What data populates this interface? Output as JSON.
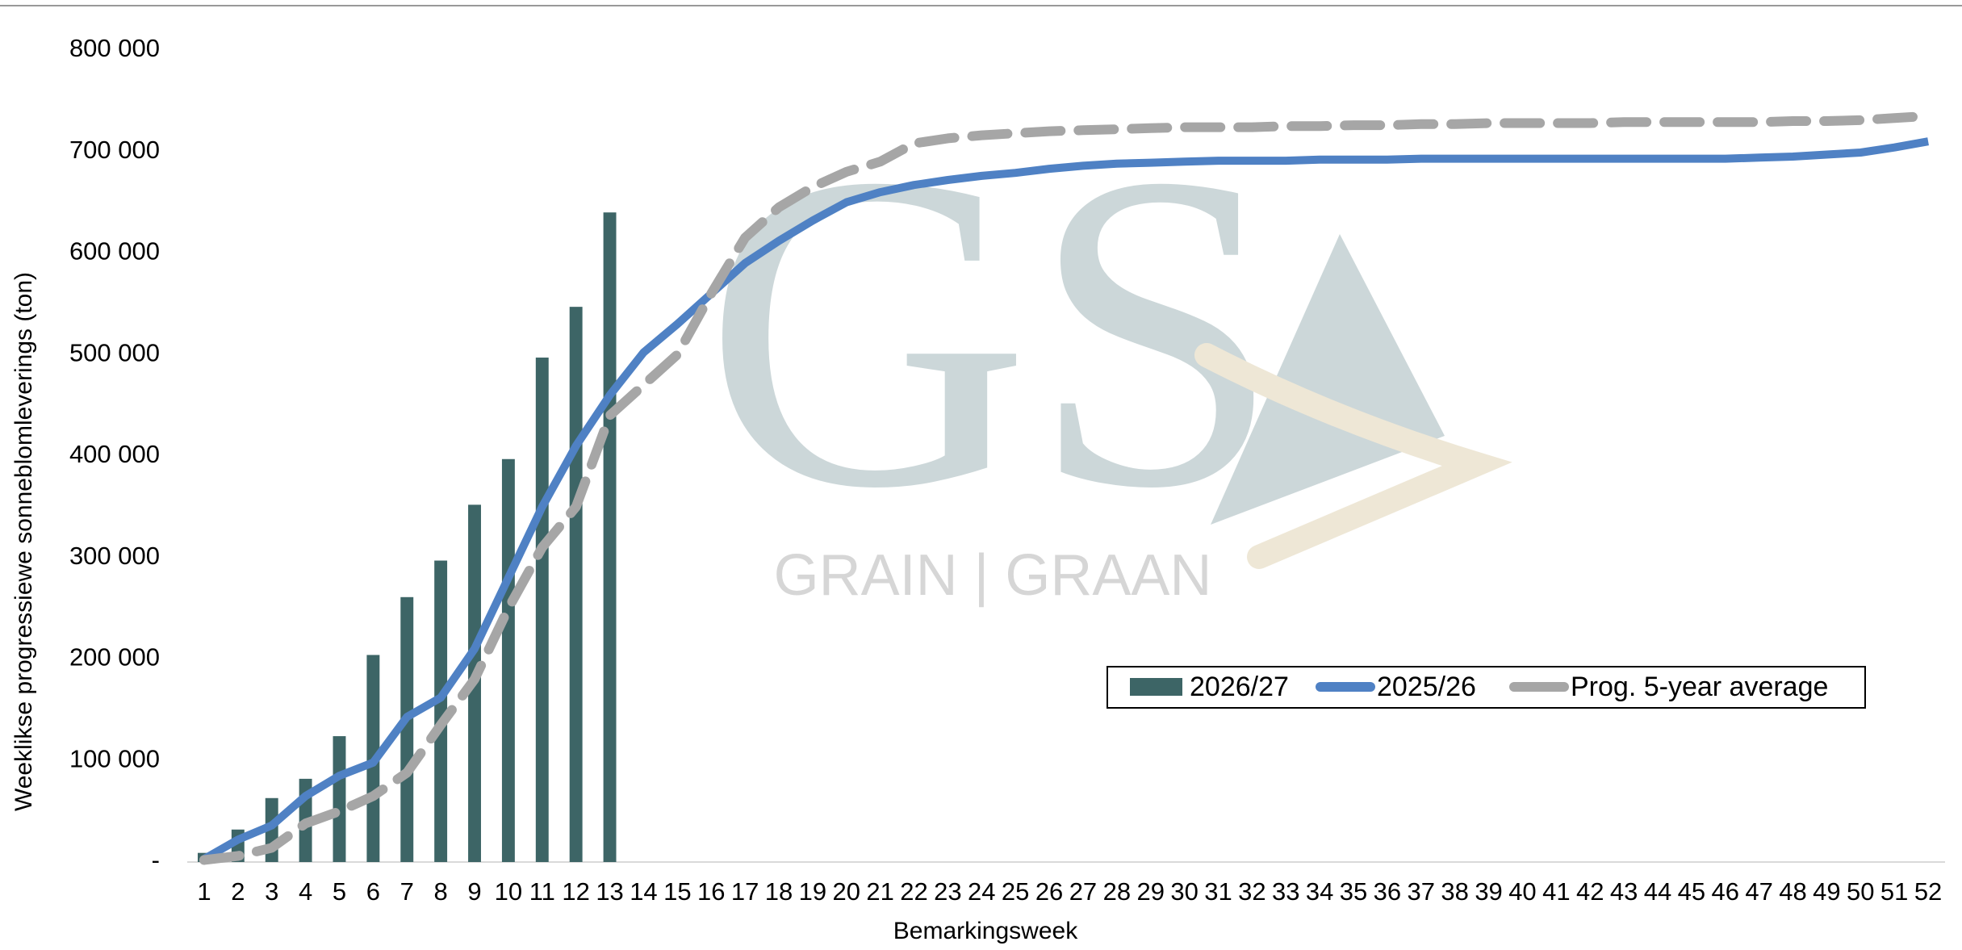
{
  "chart_data": {
    "type": "combo",
    "y_axis_label": "Weeklikse progressiewe sonneblomleverings (ton)",
    "x_axis_label": "Bemarkingsweek",
    "watermark": {
      "logo": "GS",
      "tagline": "GRAIN | GRAAN"
    },
    "categories": [
      "1",
      "2",
      "3",
      "4",
      "5",
      "6",
      "7",
      "8",
      "9",
      "10",
      "11",
      "12",
      "13",
      "14",
      "15",
      "16",
      "17",
      "18",
      "19",
      "20",
      "21",
      "22",
      "23",
      "24",
      "25",
      "26",
      "27",
      "28",
      "29",
      "30",
      "31",
      "32",
      "33",
      "34",
      "35",
      "36",
      "37",
      "38",
      "39",
      "40",
      "41",
      "42",
      "43",
      "44",
      "45",
      "46",
      "47",
      "48",
      "49",
      "50",
      "51",
      "52"
    ],
    "series": [
      {
        "name": "2026/27",
        "type": "bar",
        "color": "#3d6566",
        "values": [
          9000,
          32000,
          63000,
          82000,
          124000,
          204000,
          261000,
          297000,
          352000,
          397000,
          497000,
          547000,
          640000,
          null,
          null,
          null,
          null,
          null,
          null,
          null,
          null,
          null,
          null,
          null,
          null,
          null,
          null,
          null,
          null,
          null,
          null,
          null,
          null,
          null,
          null,
          null,
          null,
          null,
          null,
          null,
          null,
          null,
          null,
          null,
          null,
          null,
          null,
          null,
          null,
          null,
          null,
          null
        ]
      },
      {
        "name": "2025/26",
        "type": "line",
        "color": "#4f81c4",
        "values": [
          3000,
          22000,
          36000,
          65000,
          85000,
          98000,
          143000,
          162000,
          210000,
          280000,
          350000,
          410000,
          460000,
          502000,
          530000,
          560000,
          590000,
          612000,
          632000,
          650000,
          660000,
          667000,
          672000,
          676000,
          679000,
          683000,
          686000,
          688000,
          689000,
          690000,
          691000,
          691000,
          691000,
          692000,
          692000,
          692000,
          693000,
          693000,
          693000,
          693000,
          693000,
          693000,
          693000,
          693000,
          693000,
          693000,
          694000,
          695000,
          697000,
          699000,
          704000,
          710000
        ]
      },
      {
        "name": "Prog. 5-year average",
        "type": "line",
        "dashed": true,
        "color": "#a6a6a6",
        "values": [
          2000,
          6000,
          14000,
          38000,
          50000,
          65000,
          88000,
          135000,
          180000,
          250000,
          310000,
          350000,
          440000,
          470000,
          500000,
          560000,
          615000,
          645000,
          665000,
          680000,
          690000,
          708000,
          713000,
          716000,
          718000,
          720000,
          721000,
          722000,
          723000,
          724000,
          724000,
          724000,
          725000,
          725000,
          726000,
          726000,
          727000,
          727000,
          728000,
          728000,
          728000,
          728000,
          729000,
          729000,
          729000,
          729000,
          729000,
          730000,
          730000,
          731000,
          733000,
          735000
        ]
      }
    ],
    "ylim": [
      0,
      800000
    ],
    "yticks": [
      {
        "value": 0,
        "label": "-"
      },
      {
        "value": 100000,
        "label": "100 000"
      },
      {
        "value": 200000,
        "label": "200 000"
      },
      {
        "value": 300000,
        "label": "300 000"
      },
      {
        "value": 400000,
        "label": "400 000"
      },
      {
        "value": 500000,
        "label": "500 000"
      },
      {
        "value": 600000,
        "label": "600 000"
      },
      {
        "value": 700000,
        "label": "700 000"
      },
      {
        "value": 800000,
        "label": "800 000"
      }
    ],
    "grid": false,
    "legend": "lower right"
  }
}
